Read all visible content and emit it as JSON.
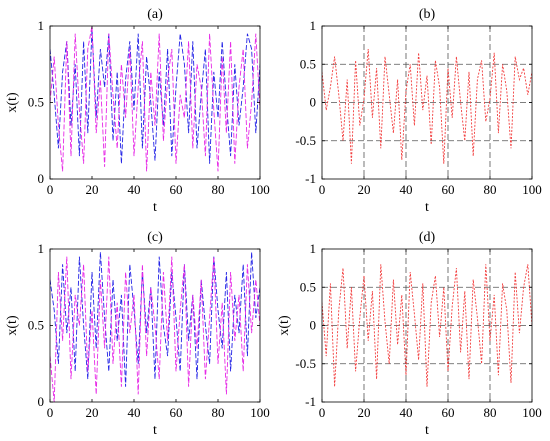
{
  "colors": {
    "blue": "#2323e6",
    "magenta": "#e629e6",
    "red": "#f23c3c",
    "grid": "#555555",
    "axis": "#000000"
  },
  "chart_data": [
    {
      "panel": "a",
      "title": "(a)",
      "type": "line",
      "xlabel": "t",
      "ylabel": "x(t)",
      "xlim": [
        0,
        100
      ],
      "ylim": [
        0,
        1
      ],
      "xticks": [
        0,
        20,
        40,
        60,
        80,
        100
      ],
      "yticks": [
        0,
        0.5,
        1
      ],
      "xtick_labels": [
        "0",
        "20",
        "40",
        "60",
        "80",
        "100"
      ],
      "ytick_labels": [
        "0",
        "0.5",
        "1"
      ],
      "grid": false,
      "series": [
        {
          "color": "blue",
          "style": "dashed",
          "x": [
            0,
            2,
            4,
            6,
            8,
            10,
            12,
            14,
            16,
            18,
            20,
            22,
            24,
            26,
            28,
            30,
            32,
            34,
            36,
            38,
            40,
            42,
            44,
            46,
            48,
            50,
            52,
            54,
            56,
            58,
            60,
            62,
            64,
            66,
            68,
            70,
            72,
            74,
            76,
            78,
            80,
            82,
            84,
            86,
            88,
            90,
            92,
            94,
            96,
            98,
            100
          ],
          "y": [
            0.85,
            0.55,
            0.2,
            0.7,
            0.9,
            0.35,
            0.75,
            0.15,
            0.9,
            0.3,
            0.98,
            0.4,
            0.85,
            0.6,
            0.95,
            0.25,
            0.7,
            0.1,
            0.65,
            0.9,
            0.45,
            0.95,
            0.2,
            0.8,
            0.5,
            0.12,
            0.7,
            0.35,
            0.85,
            0.15,
            0.6,
            0.95,
            0.75,
            0.3,
            0.9,
            0.2,
            0.55,
            0.85,
            0.1,
            0.7,
            0.4,
            0.9,
            0.5,
            0.15,
            0.75,
            0.35,
            0.6,
            0.95,
            0.85,
            0.3,
            0.75
          ]
        },
        {
          "color": "magenta",
          "style": "dashed",
          "x": [
            0,
            2,
            4,
            6,
            8,
            10,
            12,
            14,
            16,
            18,
            20,
            22,
            24,
            26,
            28,
            30,
            32,
            34,
            36,
            38,
            40,
            42,
            44,
            46,
            48,
            50,
            52,
            54,
            56,
            58,
            60,
            62,
            64,
            66,
            68,
            70,
            72,
            74,
            76,
            78,
            80,
            82,
            84,
            86,
            88,
            90,
            92,
            94,
            96,
            98,
            100
          ],
          "y": [
            0.5,
            0.8,
            0.35,
            0.05,
            0.9,
            0.15,
            0.95,
            0.45,
            0.1,
            0.85,
            1.0,
            0.3,
            0.65,
            0.08,
            0.95,
            0.55,
            0.2,
            0.75,
            0.4,
            0.85,
            0.15,
            0.6,
            0.9,
            0.05,
            0.7,
            0.35,
            0.95,
            0.25,
            0.65,
            0.85,
            0.1,
            0.55,
            0.4,
            0.9,
            0.2,
            0.75,
            0.6,
            0.15,
            0.95,
            0.45,
            0.05,
            0.8,
            0.3,
            0.9,
            0.1,
            0.6,
            0.85,
            0.2,
            0.5,
            0.95,
            0.45
          ]
        }
      ]
    },
    {
      "panel": "b",
      "title": "(b)",
      "type": "line",
      "xlabel": "t",
      "ylabel": "",
      "xlim": [
        0,
        100
      ],
      "ylim": [
        -1,
        1
      ],
      "xticks": [
        0,
        20,
        40,
        60,
        80,
        100
      ],
      "yticks": [
        -1,
        -0.5,
        0,
        0.5,
        1
      ],
      "xtick_labels": [
        "0",
        "20",
        "40",
        "60",
        "80",
        "100"
      ],
      "ytick_labels": [
        "-1",
        "-0.5",
        "0",
        "0.5",
        "1"
      ],
      "grid": true,
      "series": [
        {
          "color": "red",
          "style": "dotted",
          "x": [
            0,
            2,
            4,
            6,
            8,
            10,
            12,
            14,
            16,
            18,
            20,
            22,
            24,
            26,
            28,
            30,
            32,
            34,
            36,
            38,
            40,
            42,
            44,
            46,
            48,
            50,
            52,
            54,
            56,
            58,
            60,
            62,
            64,
            66,
            68,
            70,
            72,
            74,
            76,
            78,
            80,
            82,
            84,
            86,
            88,
            90,
            92,
            94,
            96,
            98,
            100
          ],
          "y": [
            0.4,
            -0.1,
            0.2,
            0.6,
            0.1,
            -0.5,
            0.3,
            -0.8,
            0.55,
            -0.3,
            0.05,
            0.7,
            -0.2,
            0.45,
            -0.6,
            0.6,
            0.1,
            -0.4,
            0.3,
            -0.75,
            0.15,
            0.5,
            -0.3,
            0.65,
            -0.1,
            0.35,
            -0.55,
            0.55,
            0.2,
            -0.8,
            0.45,
            -0.2,
            0.6,
            0.0,
            -0.5,
            0.4,
            -0.7,
            0.3,
            0.55,
            -0.25,
            0.05,
            0.65,
            -0.4,
            0.5,
            0.15,
            -0.6,
            0.6,
            0.3,
            0.45,
            0.1,
            0.4
          ]
        }
      ]
    },
    {
      "panel": "c",
      "title": "(c)",
      "type": "line",
      "xlabel": "t",
      "ylabel": "x(t)",
      "xlim": [
        0,
        100
      ],
      "ylim": [
        0,
        1
      ],
      "xticks": [
        0,
        20,
        40,
        60,
        80,
        100
      ],
      "yticks": [
        0,
        0.5,
        1
      ],
      "xtick_labels": [
        "0",
        "20",
        "40",
        "60",
        "80",
        "100"
      ],
      "ytick_labels": [
        "0",
        "0.5",
        "1"
      ],
      "grid": false,
      "series": [
        {
          "color": "blue",
          "style": "dashed",
          "x": [
            0,
            2,
            4,
            6,
            8,
            10,
            12,
            14,
            16,
            18,
            20,
            22,
            24,
            26,
            28,
            30,
            32,
            34,
            36,
            38,
            40,
            42,
            44,
            46,
            48,
            50,
            52,
            54,
            56,
            58,
            60,
            62,
            64,
            66,
            68,
            70,
            72,
            74,
            76,
            78,
            80,
            82,
            84,
            86,
            88,
            90,
            92,
            94,
            96,
            98,
            100
          ],
          "y": [
            0.8,
            0.6,
            0.25,
            0.9,
            0.45,
            0.75,
            0.2,
            0.95,
            0.5,
            0.15,
            0.85,
            0.35,
            0.98,
            0.55,
            0.2,
            0.8,
            0.4,
            0.7,
            0.1,
            0.9,
            0.6,
            0.25,
            0.85,
            0.45,
            0.75,
            0.15,
            0.95,
            0.5,
            0.3,
            0.85,
            0.55,
            0.2,
            0.9,
            0.4,
            0.7,
            0.15,
            0.8,
            0.5,
            0.25,
            0.95,
            0.6,
            0.35,
            0.85,
            0.2,
            0.7,
            0.45,
            0.9,
            0.3,
            0.98,
            0.55,
            0.75
          ]
        },
        {
          "color": "magenta",
          "style": "dashed",
          "x": [
            0,
            2,
            4,
            6,
            8,
            10,
            12,
            14,
            16,
            18,
            20,
            22,
            24,
            26,
            28,
            30,
            32,
            34,
            36,
            38,
            40,
            42,
            44,
            46,
            48,
            50,
            52,
            54,
            56,
            58,
            60,
            62,
            64,
            66,
            68,
            70,
            72,
            74,
            76,
            78,
            80,
            82,
            84,
            86,
            88,
            90,
            92,
            94,
            96,
            98,
            100
          ],
          "y": [
            0.3,
            0.0,
            0.85,
            0.4,
            0.95,
            0.15,
            0.7,
            0.5,
            0.9,
            0.2,
            0.6,
            0.05,
            0.8,
            0.35,
            0.95,
            0.25,
            0.65,
            0.1,
            0.85,
            0.45,
            0.7,
            0.05,
            0.9,
            0.3,
            0.75,
            0.5,
            0.15,
            0.85,
            0.4,
            0.95,
            0.2,
            0.6,
            0.9,
            0.1,
            0.7,
            0.35,
            0.8,
            0.15,
            0.55,
            0.95,
            0.25,
            0.65,
            0.05,
            0.85,
            0.4,
            0.7,
            0.2,
            0.9,
            0.45,
            0.8,
            0.5
          ]
        }
      ]
    },
    {
      "panel": "d",
      "title": "(d)",
      "type": "line",
      "xlabel": "t",
      "ylabel": "x(t)",
      "xlim": [
        0,
        100
      ],
      "ylim": [
        -1,
        1
      ],
      "xticks": [
        0,
        20,
        40,
        60,
        80,
        100
      ],
      "yticks": [
        -1,
        -0.5,
        0,
        0.5,
        1
      ],
      "xtick_labels": [
        "0",
        "20",
        "40",
        "60",
        "80",
        "100"
      ],
      "ytick_labels": [
        "-1",
        "-0.5",
        "0",
        "0.5",
        "1"
      ],
      "grid": true,
      "series": [
        {
          "color": "red",
          "style": "dotted",
          "x": [
            0,
            2,
            4,
            6,
            8,
            10,
            12,
            14,
            16,
            18,
            20,
            22,
            24,
            26,
            28,
            30,
            32,
            34,
            36,
            38,
            40,
            42,
            44,
            46,
            48,
            50,
            52,
            54,
            56,
            58,
            60,
            62,
            64,
            66,
            68,
            70,
            72,
            74,
            76,
            78,
            80,
            82,
            84,
            86,
            88,
            90,
            92,
            94,
            96,
            98,
            100
          ],
          "y": [
            0.3,
            -0.4,
            0.55,
            -0.8,
            0.2,
            0.75,
            -0.3,
            0.5,
            -0.6,
            0.1,
            0.65,
            -0.2,
            0.45,
            -0.7,
            0.8,
            0.05,
            -0.5,
            0.6,
            -0.25,
            0.4,
            -0.65,
            0.7,
            0.15,
            -0.45,
            0.55,
            -0.8,
            0.3,
            0.65,
            -0.15,
            0.5,
            -0.6,
            0.25,
            0.75,
            -0.35,
            0.45,
            -0.7,
            0.6,
            0.1,
            -0.5,
            0.8,
            -0.2,
            0.4,
            -0.65,
            0.55,
            0.2,
            -0.75,
            0.7,
            -0.1,
            0.5,
            0.8,
            0.0
          ]
        }
      ]
    }
  ]
}
